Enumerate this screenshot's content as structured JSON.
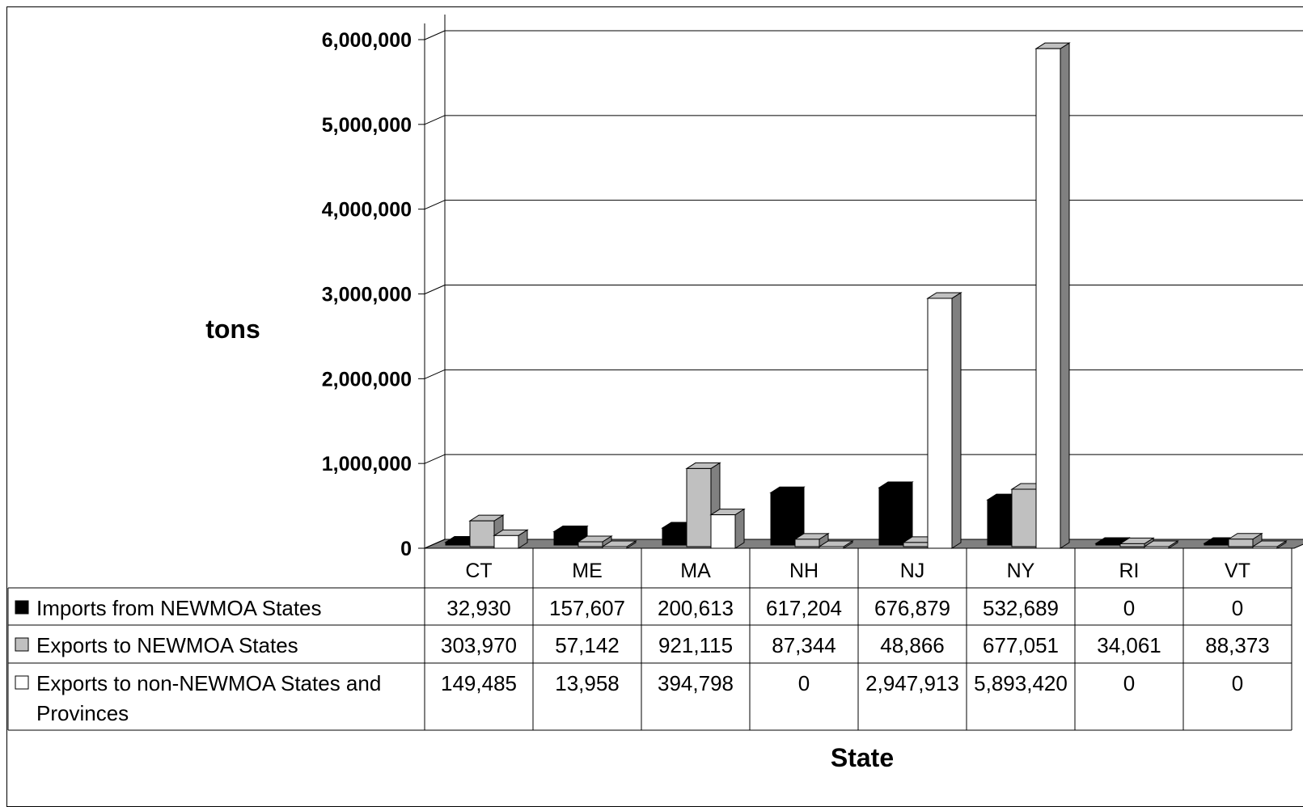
{
  "chart_data": {
    "type": "bar",
    "title": "",
    "xlabel": "State",
    "ylabel": "tons",
    "ylim": [
      0,
      6000000
    ],
    "yticks": [
      "0",
      "1,000,000",
      "2,000,000",
      "3,000,000",
      "4,000,000",
      "5,000,000",
      "6,000,000"
    ],
    "grid": true,
    "legend": "data-table",
    "categories": [
      "CT",
      "ME",
      "MA",
      "NH",
      "NJ",
      "NY",
      "RI",
      "VT"
    ],
    "series": [
      {
        "name": "Imports from NEWMOA States",
        "color": "#000000",
        "values": [
          32930,
          157607,
          200613,
          617204,
          676879,
          532689,
          0,
          0
        ],
        "labels": [
          "32,930",
          "157,607",
          "200,613",
          "617,204",
          "676,879",
          "532,689",
          "0",
          "0"
        ]
      },
      {
        "name": "Exports to NEWMOA States",
        "color": "#c0c0c0",
        "values": [
          303970,
          57142,
          921115,
          87344,
          48866,
          677051,
          34061,
          88373
        ],
        "labels": [
          "303,970",
          "57,142",
          "921,115",
          "87,344",
          "48,866",
          "677,051",
          "34,061",
          "88,373"
        ]
      },
      {
        "name": "Exports to non-NEWMOA States and Provinces",
        "name_lines": [
          "Exports to non-NEWMOA States and",
          "Provinces"
        ],
        "color": "#ffffff",
        "values": [
          149485,
          13958,
          394798,
          0,
          2947913,
          5893420,
          0,
          0
        ],
        "labels": [
          "149,485",
          "13,958",
          "394,798",
          "0",
          "2,947,913",
          "5,893,420",
          "0",
          "0"
        ]
      }
    ]
  }
}
